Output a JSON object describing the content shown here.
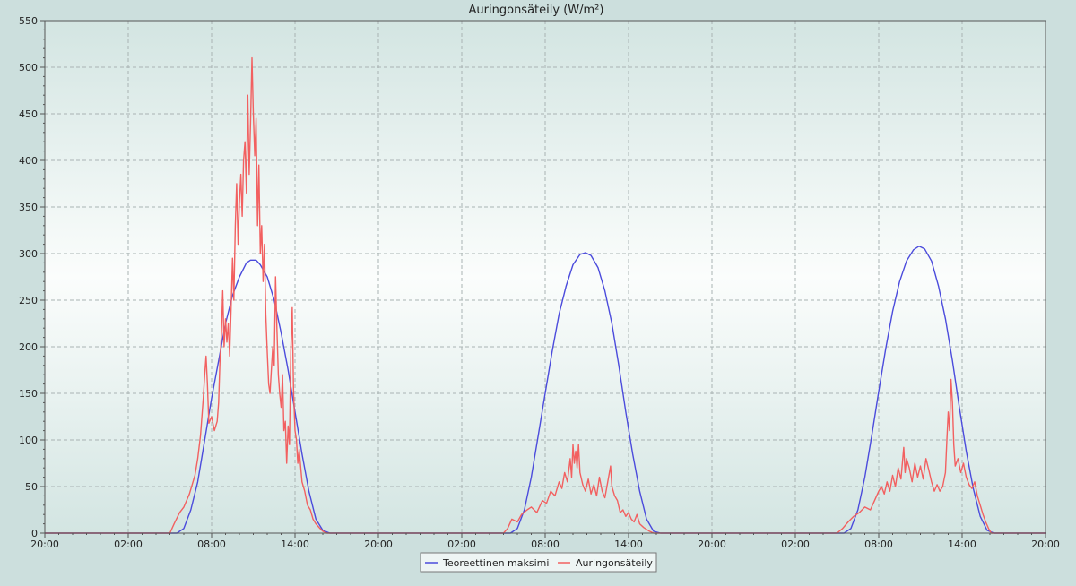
{
  "chart_data": {
    "type": "line",
    "title": "Auringonsäteily (W/m²)",
    "xlabel": "",
    "ylabel": "",
    "ylim": [
      0,
      550
    ],
    "y_ticks": [
      0,
      50,
      100,
      150,
      200,
      250,
      300,
      350,
      400,
      450,
      500,
      550
    ],
    "xlim_hours": [
      0,
      72
    ],
    "x_ticks": [
      {
        "hour": 0,
        "label": "20:00"
      },
      {
        "hour": 6,
        "label": "02:00"
      },
      {
        "hour": 12,
        "label": "08:00"
      },
      {
        "hour": 18,
        "label": "14:00"
      },
      {
        "hour": 24,
        "label": "20:00"
      },
      {
        "hour": 30,
        "label": "02:00"
      },
      {
        "hour": 36,
        "label": "08:00"
      },
      {
        "hour": 42,
        "label": "14:00"
      },
      {
        "hour": 48,
        "label": "20:00"
      },
      {
        "hour": 54,
        "label": "02:00"
      },
      {
        "hour": 60,
        "label": "08:00"
      },
      {
        "hour": 66,
        "label": "14:00"
      },
      {
        "hour": 72,
        "label": "20:00"
      }
    ],
    "grid": true,
    "legend_position": "bottom-center",
    "series": [
      {
        "name": "Teoreettinen maksimi",
        "color": "#4b4bdc",
        "points": [
          [
            0,
            0
          ],
          [
            9.5,
            0
          ],
          [
            10,
            5
          ],
          [
            10.5,
            25
          ],
          [
            11,
            55
          ],
          [
            11.5,
            100
          ],
          [
            12,
            145
          ],
          [
            12.5,
            185
          ],
          [
            13,
            225
          ],
          [
            13.5,
            255
          ],
          [
            14,
            275
          ],
          [
            14.5,
            290
          ],
          [
            14.8,
            293
          ],
          [
            15.2,
            293
          ],
          [
            15.5,
            288
          ],
          [
            16,
            275
          ],
          [
            16.5,
            250
          ],
          [
            17,
            215
          ],
          [
            17.5,
            175
          ],
          [
            18,
            130
          ],
          [
            18.5,
            85
          ],
          [
            19,
            45
          ],
          [
            19.5,
            15
          ],
          [
            20,
            3
          ],
          [
            20.5,
            0
          ],
          [
            33.5,
            0
          ],
          [
            34,
            5
          ],
          [
            34.5,
            25
          ],
          [
            35,
            60
          ],
          [
            35.5,
            105
          ],
          [
            36,
            150
          ],
          [
            36.5,
            195
          ],
          [
            37,
            235
          ],
          [
            37.5,
            265
          ],
          [
            38,
            288
          ],
          [
            38.5,
            299
          ],
          [
            38.9,
            301
          ],
          [
            39.3,
            298
          ],
          [
            39.8,
            285
          ],
          [
            40.3,
            260
          ],
          [
            40.8,
            225
          ],
          [
            41.3,
            180
          ],
          [
            41.8,
            130
          ],
          [
            42.3,
            85
          ],
          [
            42.8,
            45
          ],
          [
            43.3,
            15
          ],
          [
            43.8,
            2
          ],
          [
            44.3,
            0
          ],
          [
            57.5,
            0
          ],
          [
            58,
            5
          ],
          [
            58.5,
            25
          ],
          [
            59,
            60
          ],
          [
            59.5,
            105
          ],
          [
            60,
            152
          ],
          [
            60.5,
            198
          ],
          [
            61,
            238
          ],
          [
            61.5,
            270
          ],
          [
            62,
            292
          ],
          [
            62.5,
            304
          ],
          [
            62.9,
            308
          ],
          [
            63.3,
            305
          ],
          [
            63.8,
            292
          ],
          [
            64.3,
            265
          ],
          [
            64.8,
            230
          ],
          [
            65.3,
            185
          ],
          [
            65.8,
            135
          ],
          [
            66.3,
            88
          ],
          [
            66.8,
            48
          ],
          [
            67.3,
            18
          ],
          [
            67.8,
            3
          ],
          [
            68.3,
            0
          ],
          [
            72,
            0
          ]
        ]
      },
      {
        "name": "Auringonsäteily",
        "color": "#f26060",
        "points": [
          [
            0,
            0
          ],
          [
            9,
            0
          ],
          [
            9.3,
            10
          ],
          [
            9.7,
            22
          ],
          [
            10,
            28
          ],
          [
            10.4,
            42
          ],
          [
            10.8,
            62
          ],
          [
            11,
            80
          ],
          [
            11.2,
            105
          ],
          [
            11.4,
            145
          ],
          [
            11.5,
            170
          ],
          [
            11.6,
            190
          ],
          [
            11.7,
            160
          ],
          [
            11.8,
            118
          ],
          [
            12,
            125
          ],
          [
            12.2,
            110
          ],
          [
            12.4,
            120
          ],
          [
            12.5,
            140
          ],
          [
            12.6,
            185
          ],
          [
            12.7,
            210
          ],
          [
            12.8,
            260
          ],
          [
            12.9,
            200
          ],
          [
            13,
            230
          ],
          [
            13.1,
            205
          ],
          [
            13.2,
            225
          ],
          [
            13.3,
            190
          ],
          [
            13.4,
            240
          ],
          [
            13.5,
            295
          ],
          [
            13.6,
            250
          ],
          [
            13.7,
            330
          ],
          [
            13.8,
            375
          ],
          [
            13.9,
            310
          ],
          [
            14,
            355
          ],
          [
            14.1,
            385
          ],
          [
            14.2,
            340
          ],
          [
            14.3,
            400
          ],
          [
            14.4,
            420
          ],
          [
            14.5,
            365
          ],
          [
            14.6,
            470
          ],
          [
            14.7,
            385
          ],
          [
            14.8,
            440
          ],
          [
            14.9,
            510
          ],
          [
            15,
            450
          ],
          [
            15.1,
            405
          ],
          [
            15.2,
            445
          ],
          [
            15.3,
            330
          ],
          [
            15.4,
            395
          ],
          [
            15.5,
            300
          ],
          [
            15.6,
            330
          ],
          [
            15.7,
            270
          ],
          [
            15.8,
            310
          ],
          [
            15.9,
            235
          ],
          [
            16,
            195
          ],
          [
            16.1,
            160
          ],
          [
            16.2,
            150
          ],
          [
            16.3,
            175
          ],
          [
            16.4,
            200
          ],
          [
            16.5,
            180
          ],
          [
            16.6,
            275
          ],
          [
            16.7,
            220
          ],
          [
            16.8,
            170
          ],
          [
            16.9,
            150
          ],
          [
            17,
            135
          ],
          [
            17.1,
            170
          ],
          [
            17.2,
            110
          ],
          [
            17.3,
            120
          ],
          [
            17.4,
            75
          ],
          [
            17.5,
            115
          ],
          [
            17.6,
            95
          ],
          [
            17.7,
            195
          ],
          [
            17.8,
            242
          ],
          [
            17.9,
            150
          ],
          [
            18,
            110
          ],
          [
            18.1,
            100
          ],
          [
            18.2,
            75
          ],
          [
            18.3,
            90
          ],
          [
            18.5,
            55
          ],
          [
            18.7,
            45
          ],
          [
            18.9,
            30
          ],
          [
            19.1,
            25
          ],
          [
            19.3,
            15
          ],
          [
            19.5,
            10
          ],
          [
            19.8,
            5
          ],
          [
            20,
            2
          ],
          [
            20.3,
            0
          ],
          [
            33,
            0
          ],
          [
            33.3,
            5
          ],
          [
            33.6,
            15
          ],
          [
            34,
            12
          ],
          [
            34.3,
            20
          ],
          [
            34.7,
            25
          ],
          [
            35,
            28
          ],
          [
            35.4,
            22
          ],
          [
            35.8,
            35
          ],
          [
            36.1,
            32
          ],
          [
            36.4,
            45
          ],
          [
            36.7,
            40
          ],
          [
            37,
            55
          ],
          [
            37.2,
            48
          ],
          [
            37.4,
            65
          ],
          [
            37.6,
            55
          ],
          [
            37.8,
            80
          ],
          [
            37.9,
            60
          ],
          [
            38,
            95
          ],
          [
            38.1,
            75
          ],
          [
            38.2,
            88
          ],
          [
            38.3,
            70
          ],
          [
            38.4,
            95
          ],
          [
            38.5,
            65
          ],
          [
            38.7,
            52
          ],
          [
            38.9,
            45
          ],
          [
            39.1,
            58
          ],
          [
            39.3,
            42
          ],
          [
            39.5,
            52
          ],
          [
            39.7,
            40
          ],
          [
            39.9,
            60
          ],
          [
            40.1,
            45
          ],
          [
            40.3,
            38
          ],
          [
            40.5,
            55
          ],
          [
            40.7,
            72
          ],
          [
            40.8,
            50
          ],
          [
            41,
            40
          ],
          [
            41.2,
            35
          ],
          [
            41.4,
            22
          ],
          [
            41.6,
            25
          ],
          [
            41.8,
            18
          ],
          [
            42,
            22
          ],
          [
            42.2,
            15
          ],
          [
            42.4,
            12
          ],
          [
            42.6,
            20
          ],
          [
            42.8,
            10
          ],
          [
            43.1,
            6
          ],
          [
            43.5,
            2
          ],
          [
            43.8,
            0
          ],
          [
            57,
            0
          ],
          [
            57.4,
            5
          ],
          [
            57.8,
            12
          ],
          [
            58.2,
            18
          ],
          [
            58.6,
            22
          ],
          [
            59,
            28
          ],
          [
            59.4,
            25
          ],
          [
            59.7,
            35
          ],
          [
            60,
            45
          ],
          [
            60.2,
            50
          ],
          [
            60.4,
            42
          ],
          [
            60.6,
            55
          ],
          [
            60.8,
            45
          ],
          [
            61,
            62
          ],
          [
            61.2,
            50
          ],
          [
            61.4,
            70
          ],
          [
            61.6,
            58
          ],
          [
            61.8,
            92
          ],
          [
            61.9,
            65
          ],
          [
            62,
            80
          ],
          [
            62.2,
            70
          ],
          [
            62.4,
            55
          ],
          [
            62.6,
            75
          ],
          [
            62.8,
            60
          ],
          [
            63,
            72
          ],
          [
            63.2,
            58
          ],
          [
            63.4,
            80
          ],
          [
            63.6,
            68
          ],
          [
            63.8,
            55
          ],
          [
            64,
            45
          ],
          [
            64.2,
            52
          ],
          [
            64.4,
            45
          ],
          [
            64.6,
            50
          ],
          [
            64.8,
            65
          ],
          [
            64.9,
            100
          ],
          [
            65,
            130
          ],
          [
            65.1,
            110
          ],
          [
            65.2,
            165
          ],
          [
            65.3,
            140
          ],
          [
            65.4,
            95
          ],
          [
            65.5,
            72
          ],
          [
            65.7,
            80
          ],
          [
            65.9,
            65
          ],
          [
            66.1,
            75
          ],
          [
            66.3,
            60
          ],
          [
            66.5,
            52
          ],
          [
            66.7,
            48
          ],
          [
            66.9,
            55
          ],
          [
            67.1,
            40
          ],
          [
            67.3,
            30
          ],
          [
            67.5,
            20
          ],
          [
            67.7,
            12
          ],
          [
            67.9,
            5
          ],
          [
            68.1,
            0
          ],
          [
            72,
            0
          ]
        ]
      }
    ]
  }
}
